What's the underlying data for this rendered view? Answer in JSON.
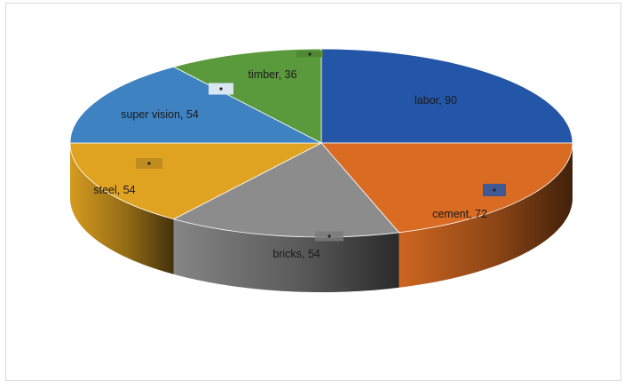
{
  "chart_data": {
    "type": "pie",
    "style": "3d",
    "title": "",
    "categories": [
      "labor",
      "cement",
      "bricks",
      "steel",
      "super vision",
      "timber"
    ],
    "values": [
      90,
      72,
      54,
      54,
      54,
      36
    ],
    "colors": [
      "#2456a8",
      "#d96b22",
      "#8c8c8c",
      "#e0a321",
      "#3f82c2",
      "#5b9a3c"
    ],
    "labels": [
      "labor, 90",
      "cement, 72",
      "bricks, 54",
      "steel, 54",
      "super vision, 54",
      "timber, 36"
    ],
    "legend": "none",
    "grid": false
  }
}
